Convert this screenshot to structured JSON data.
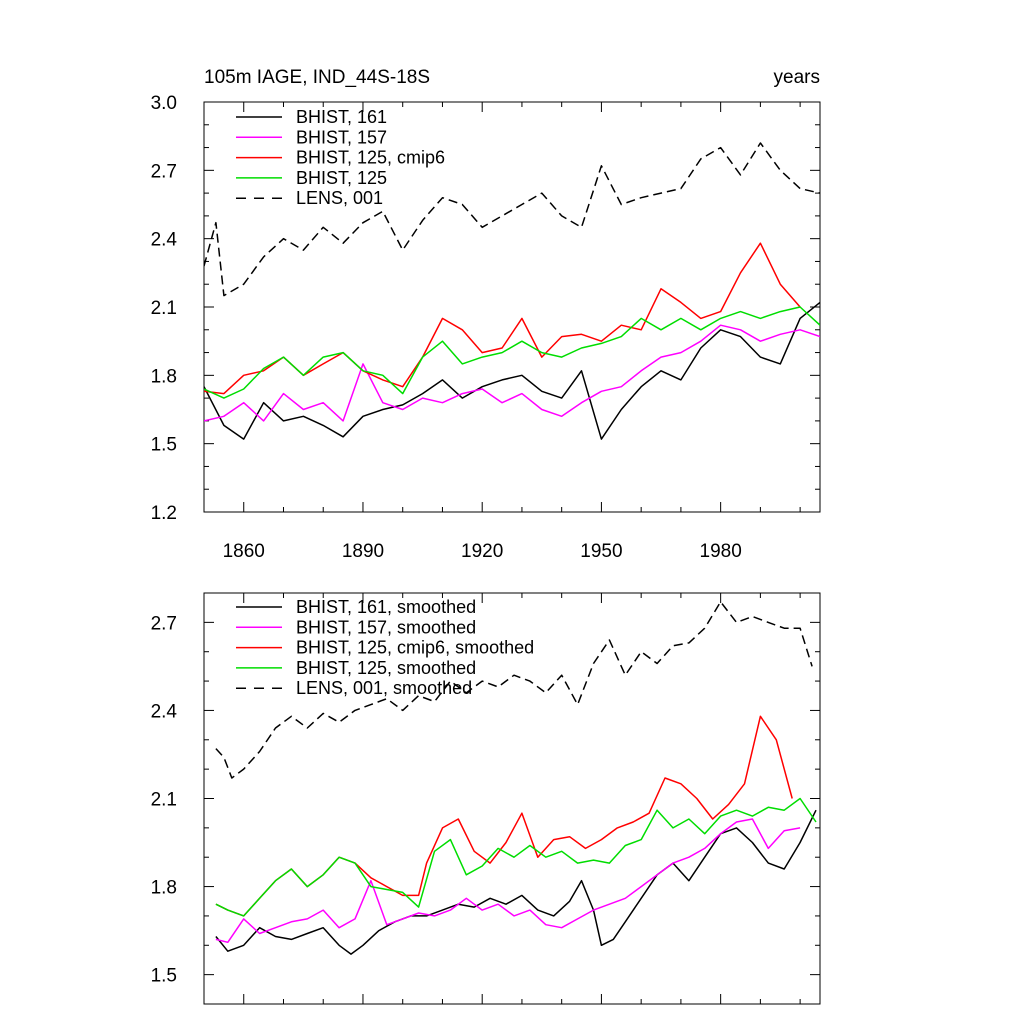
{
  "chart_data": [
    {
      "type": "line",
      "title_left": "105m IAGE, IND_44S-18S",
      "title_right": "years",
      "xlim": [
        1850,
        2005
      ],
      "ylim": [
        1.2,
        3.0
      ],
      "yticks": [
        "1.2",
        "1.5",
        "1.8",
        "2.1",
        "2.4",
        "2.7",
        "3.0"
      ],
      "xticks": [
        "1860",
        "1890",
        "1920",
        "1950",
        "1980"
      ],
      "legend_position": "top-left",
      "series": [
        {
          "name": "BHIST, 161",
          "color": "#000000",
          "dash": "solid",
          "x": [
            1850,
            1855,
            1860,
            1865,
            1870,
            1875,
            1880,
            1885,
            1890,
            1895,
            1900,
            1905,
            1910,
            1915,
            1920,
            1925,
            1930,
            1935,
            1940,
            1945,
            1950,
            1955,
            1960,
            1965,
            1970,
            1975,
            1980,
            1985,
            1990,
            1995,
            2000,
            2005
          ],
          "y": [
            1.75,
            1.58,
            1.52,
            1.68,
            1.6,
            1.62,
            1.58,
            1.53,
            1.62,
            1.65,
            1.67,
            1.72,
            1.78,
            1.7,
            1.75,
            1.78,
            1.8,
            1.73,
            1.7,
            1.82,
            1.52,
            1.65,
            1.75,
            1.82,
            1.78,
            1.92,
            2.0,
            1.97,
            1.88,
            1.85,
            2.05,
            2.12
          ]
        },
        {
          "name": "BHIST, 157",
          "color": "#ff00ff",
          "dash": "solid",
          "x": [
            1850,
            1855,
            1860,
            1865,
            1870,
            1875,
            1880,
            1885,
            1890,
            1895,
            1900,
            1905,
            1910,
            1915,
            1920,
            1925,
            1930,
            1935,
            1940,
            1945,
            1950,
            1955,
            1960,
            1965,
            1970,
            1975,
            1980,
            1985,
            1990,
            1995,
            2000,
            2005
          ],
          "y": [
            1.6,
            1.62,
            1.68,
            1.6,
            1.72,
            1.65,
            1.68,
            1.6,
            1.85,
            1.68,
            1.65,
            1.7,
            1.68,
            1.72,
            1.74,
            1.68,
            1.72,
            1.65,
            1.62,
            1.68,
            1.73,
            1.75,
            1.82,
            1.88,
            1.9,
            1.95,
            2.02,
            2.0,
            1.95,
            1.98,
            2.0,
            1.97
          ]
        },
        {
          "name": "BHIST, 125, cmip6",
          "color": "#ff0000",
          "dash": "solid",
          "x": [
            1850,
            1855,
            1860,
            1865,
            1870,
            1875,
            1880,
            1885,
            1890,
            1895,
            1900,
            1905,
            1910,
            1915,
            1920,
            1925,
            1930,
            1935,
            1940,
            1945,
            1950,
            1955,
            1960,
            1965,
            1970,
            1975,
            1980,
            1985,
            1990,
            1995,
            2000
          ],
          "y": [
            1.73,
            1.72,
            1.8,
            1.82,
            1.88,
            1.8,
            1.85,
            1.9,
            1.82,
            1.78,
            1.75,
            1.88,
            2.05,
            2.0,
            1.9,
            1.92,
            2.05,
            1.88,
            1.97,
            1.98,
            1.95,
            2.02,
            2.0,
            2.18,
            2.12,
            2.05,
            2.08,
            2.25,
            2.38,
            2.2,
            2.1
          ]
        },
        {
          "name": "BHIST, 125",
          "color": "#00dd00",
          "dash": "solid",
          "x": [
            1850,
            1855,
            1860,
            1865,
            1870,
            1875,
            1880,
            1885,
            1890,
            1895,
            1900,
            1905,
            1910,
            1915,
            1920,
            1925,
            1930,
            1935,
            1940,
            1945,
            1950,
            1955,
            1960,
            1965,
            1970,
            1975,
            1980,
            1985,
            1990,
            1995,
            2000,
            2005
          ],
          "y": [
            1.74,
            1.7,
            1.74,
            1.83,
            1.88,
            1.8,
            1.88,
            1.9,
            1.82,
            1.8,
            1.72,
            1.88,
            1.95,
            1.85,
            1.88,
            1.9,
            1.95,
            1.9,
            1.88,
            1.92,
            1.94,
            1.97,
            2.05,
            2.0,
            2.05,
            2.0,
            2.05,
            2.08,
            2.05,
            2.08,
            2.1,
            2.02
          ]
        },
        {
          "name": "LENS, 001",
          "color": "#000000",
          "dash": "dashed",
          "x": [
            1850,
            1853,
            1855,
            1860,
            1865,
            1870,
            1875,
            1880,
            1885,
            1890,
            1895,
            1900,
            1905,
            1910,
            1915,
            1920,
            1925,
            1930,
            1935,
            1940,
            1945,
            1950,
            1955,
            1960,
            1965,
            1970,
            1975,
            1980,
            1985,
            1990,
            1995,
            2000,
            2005
          ],
          "y": [
            2.28,
            2.47,
            2.15,
            2.2,
            2.32,
            2.4,
            2.35,
            2.45,
            2.38,
            2.47,
            2.52,
            2.35,
            2.48,
            2.58,
            2.55,
            2.45,
            2.5,
            2.55,
            2.6,
            2.5,
            2.45,
            2.72,
            2.55,
            2.58,
            2.6,
            2.62,
            2.75,
            2.8,
            2.68,
            2.82,
            2.7,
            2.62,
            2.6
          ]
        }
      ]
    },
    {
      "type": "line",
      "xlim": [
        1850,
        2005
      ],
      "ylim": [
        1.4,
        2.8
      ],
      "yticks": [
        "1.5",
        "1.8",
        "2.1",
        "2.4",
        "2.7"
      ],
      "legend_position": "top-left",
      "series": [
        {
          "name": "BHIST, 161, smoothed",
          "color": "#000000",
          "dash": "solid",
          "x": [
            1853,
            1856,
            1860,
            1864,
            1868,
            1872,
            1876,
            1880,
            1884,
            1887,
            1890,
            1894,
            1898,
            1902,
            1906,
            1910,
            1914,
            1918,
            1922,
            1926,
            1930,
            1934,
            1938,
            1942,
            1945,
            1948,
            1950,
            1953,
            1956,
            1960,
            1964,
            1968,
            1972,
            1976,
            1980,
            1984,
            1988,
            1992,
            1996,
            2000,
            2004
          ],
          "y": [
            1.63,
            1.58,
            1.6,
            1.66,
            1.63,
            1.62,
            1.64,
            1.66,
            1.6,
            1.57,
            1.6,
            1.65,
            1.68,
            1.7,
            1.7,
            1.72,
            1.74,
            1.73,
            1.76,
            1.74,
            1.77,
            1.72,
            1.7,
            1.75,
            1.82,
            1.72,
            1.6,
            1.62,
            1.68,
            1.76,
            1.84,
            1.88,
            1.82,
            1.9,
            1.98,
            2.0,
            1.95,
            1.88,
            1.86,
            1.95,
            2.06
          ]
        },
        {
          "name": "BHIST, 157, smoothed",
          "color": "#ff00ff",
          "dash": "solid",
          "x": [
            1853,
            1856,
            1860,
            1864,
            1868,
            1872,
            1876,
            1880,
            1884,
            1888,
            1892,
            1896,
            1900,
            1904,
            1908,
            1912,
            1916,
            1920,
            1924,
            1928,
            1932,
            1936,
            1940,
            1944,
            1948,
            1952,
            1956,
            1960,
            1964,
            1968,
            1972,
            1976,
            1980,
            1984,
            1988,
            1992,
            1996,
            2000
          ],
          "y": [
            1.62,
            1.61,
            1.69,
            1.64,
            1.66,
            1.68,
            1.69,
            1.72,
            1.66,
            1.69,
            1.82,
            1.67,
            1.69,
            1.71,
            1.7,
            1.72,
            1.76,
            1.72,
            1.74,
            1.7,
            1.72,
            1.67,
            1.66,
            1.69,
            1.72,
            1.74,
            1.76,
            1.8,
            1.84,
            1.88,
            1.9,
            1.93,
            1.98,
            2.02,
            2.03,
            1.93,
            1.99,
            2.0
          ]
        },
        {
          "name": "BHIST, 125, cmip6, smoothed",
          "color": "#ff0000",
          "dash": "solid",
          "x": [
            1853,
            1856,
            1860,
            1864,
            1868,
            1872,
            1876,
            1880,
            1884,
            1888,
            1892,
            1896,
            1900,
            1904,
            1906,
            1910,
            1914,
            1918,
            1922,
            1926,
            1930,
            1934,
            1938,
            1942,
            1946,
            1950,
            1954,
            1958,
            1962,
            1966,
            1970,
            1974,
            1978,
            1982,
            1986,
            1990,
            1994,
            1998
          ],
          "y": [
            1.74,
            1.72,
            1.7,
            1.76,
            1.82,
            1.86,
            1.8,
            1.84,
            1.9,
            1.88,
            1.83,
            1.8,
            1.77,
            1.77,
            1.88,
            2.0,
            2.03,
            1.92,
            1.88,
            1.95,
            2.05,
            1.9,
            1.96,
            1.97,
            1.93,
            1.96,
            2.0,
            2.02,
            2.05,
            2.17,
            2.15,
            2.1,
            2.03,
            2.08,
            2.15,
            2.38,
            2.3,
            2.1
          ]
        },
        {
          "name": "BHIST, 125, smoothed",
          "color": "#00dd00",
          "dash": "solid",
          "x": [
            1853,
            1856,
            1860,
            1864,
            1868,
            1872,
            1876,
            1880,
            1884,
            1888,
            1892,
            1896,
            1900,
            1904,
            1908,
            1912,
            1916,
            1920,
            1924,
            1928,
            1932,
            1936,
            1940,
            1944,
            1948,
            1952,
            1956,
            1960,
            1964,
            1968,
            1972,
            1976,
            1980,
            1984,
            1988,
            1992,
            1996,
            2000,
            2004
          ],
          "y": [
            1.74,
            1.72,
            1.7,
            1.76,
            1.82,
            1.86,
            1.8,
            1.84,
            1.9,
            1.88,
            1.8,
            1.79,
            1.78,
            1.73,
            1.92,
            1.96,
            1.84,
            1.87,
            1.93,
            1.9,
            1.94,
            1.9,
            1.92,
            1.88,
            1.89,
            1.88,
            1.94,
            1.96,
            2.06,
            2.0,
            2.03,
            1.98,
            2.04,
            2.06,
            2.04,
            2.07,
            2.06,
            2.1,
            2.02
          ]
        },
        {
          "name": "LENS, 001, smoothed",
          "color": "#000000",
          "dash": "dashed",
          "x": [
            1853,
            1855,
            1857,
            1860,
            1864,
            1868,
            1872,
            1876,
            1880,
            1884,
            1888,
            1892,
            1896,
            1900,
            1904,
            1908,
            1912,
            1916,
            1920,
            1924,
            1928,
            1932,
            1936,
            1940,
            1944,
            1948,
            1952,
            1956,
            1960,
            1964,
            1968,
            1972,
            1976,
            1980,
            1984,
            1988,
            1992,
            1996,
            2000,
            2003
          ],
          "y": [
            2.27,
            2.24,
            2.17,
            2.2,
            2.26,
            2.34,
            2.38,
            2.34,
            2.39,
            2.36,
            2.4,
            2.42,
            2.44,
            2.4,
            2.45,
            2.43,
            2.5,
            2.46,
            2.5,
            2.48,
            2.52,
            2.5,
            2.46,
            2.52,
            2.42,
            2.56,
            2.64,
            2.52,
            2.6,
            2.56,
            2.62,
            2.63,
            2.68,
            2.77,
            2.7,
            2.72,
            2.7,
            2.68,
            2.68,
            2.55
          ]
        }
      ]
    }
  ]
}
